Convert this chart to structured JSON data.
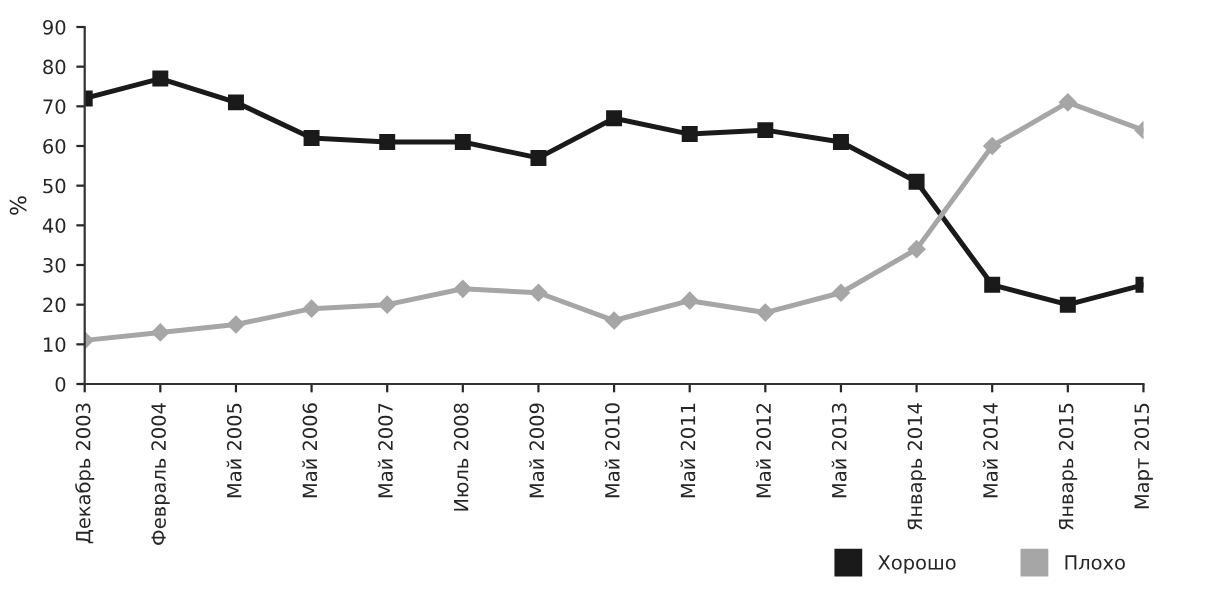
{
  "chart_data": {
    "type": "line",
    "ylabel": "%",
    "categories": [
      "Декабрь 2003",
      "Февраль 2004",
      "Май 2005",
      "Май 2006",
      "Май 2007",
      "Июль 2008",
      "Май 2009",
      "Май 2010",
      "Май 2011",
      "Май 2012",
      "Май 2013",
      "Январь 2014",
      "Май 2014",
      "Январь 2015",
      "Март 2015"
    ],
    "series": [
      {
        "name": "Хорошо",
        "color": "#1a1a1a",
        "marker": "square",
        "values": [
          72,
          77,
          71,
          62,
          61,
          61,
          57,
          67,
          63,
          64,
          61,
          51,
          25,
          20,
          25
        ]
      },
      {
        "name": "Плохо",
        "color": "#a6a6a6",
        "marker": "diamond",
        "values": [
          11,
          13,
          15,
          19,
          20,
          24,
          23,
          16,
          21,
          18,
          23,
          34,
          60,
          71,
          64
        ]
      }
    ],
    "ylim": [
      0,
      90
    ],
    "yticks": [
      0,
      10,
      20,
      30,
      40,
      50,
      60,
      70,
      80,
      90
    ],
    "grid": false,
    "legend": "bottom right",
    "line_style": "solid"
  }
}
